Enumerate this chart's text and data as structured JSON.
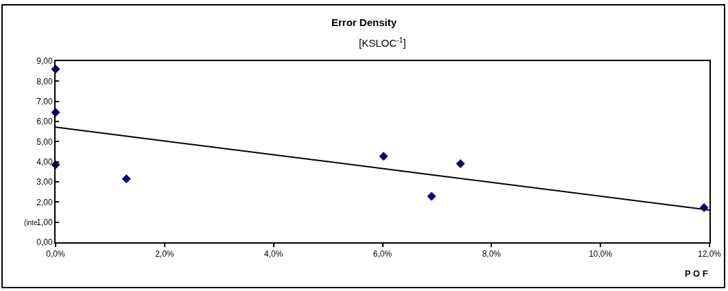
{
  "chart_data": {
    "type": "scatter",
    "title": "Error Density",
    "subtitle": "[KSLOC$^{-1}$]",
    "xlabel": "P O F",
    "annotations": [
      "(inte"
    ],
    "series": [
      {
        "color": "#000080",
        "marker": "diamond",
        "x": [
          0,
          0,
          0,
          1.3,
          6.02,
          6.9,
          7.43,
          11.9
        ],
        "values": [
          8.6,
          6.45,
          3.85,
          3.15,
          4.27,
          2.28,
          3.9,
          1.72
        ]
      },
      {
        "type": "line",
        "color": "#000000",
        "marker": "none",
        "line_style": "solid",
        "x": [
          0,
          12
        ],
        "values": [
          5.72,
          1.6
        ]
      }
    ],
    "xlim": [
      0,
      12
    ],
    "ylim": [
      0,
      9
    ],
    "xticks": [
      {
        "value": 0,
        "label": "0,0%"
      },
      {
        "value": 2,
        "label": "2,0%"
      },
      {
        "value": 4,
        "label": "4,0%"
      },
      {
        "value": 6,
        "label": "6,0%"
      },
      {
        "value": 8,
        "label": "8,0%"
      },
      {
        "value": 10,
        "label": "10,0%"
      },
      {
        "value": 12,
        "label": "12,0%"
      }
    ],
    "yticks": [
      {
        "value": 0,
        "label": "0,00"
      },
      {
        "value": 1,
        "label": "1,00"
      },
      {
        "value": 2,
        "label": "2,00"
      },
      {
        "value": 3,
        "label": "3,00"
      },
      {
        "value": 4,
        "label": "4,00"
      },
      {
        "value": 5,
        "label": "5,00"
      },
      {
        "value": 6,
        "label": "6,00"
      },
      {
        "value": 7,
        "label": "7,00"
      },
      {
        "value": 8,
        "label": "8,00"
      },
      {
        "value": 9,
        "label": "9,00"
      }
    ],
    "grid": false
  }
}
